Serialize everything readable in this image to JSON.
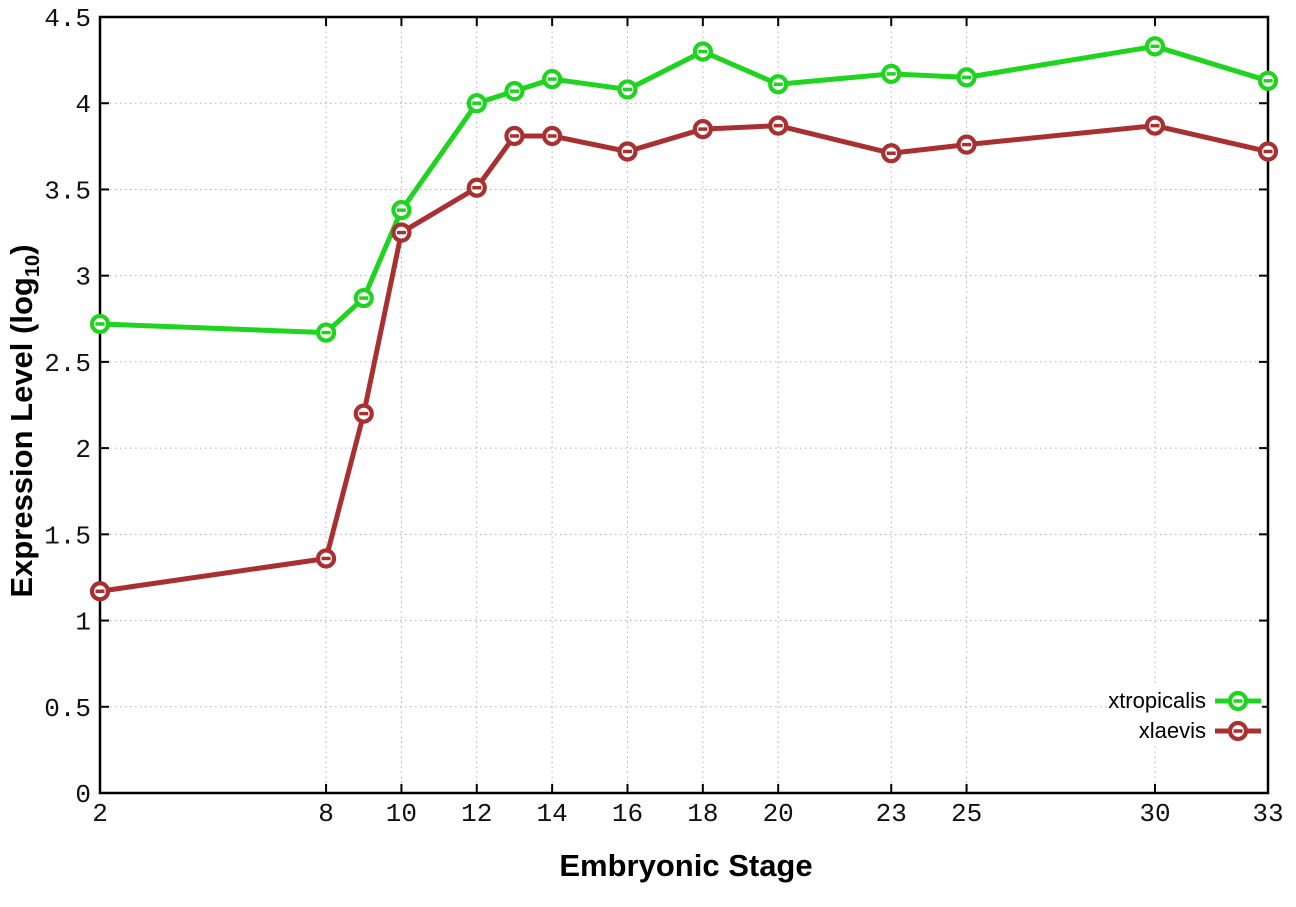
{
  "chart_data": {
    "type": "line",
    "xlabel": "Embryonic Stage",
    "ylabel_prefix": "Expression Level (log",
    "ylabel_sub": "10",
    "ylabel_suffix": ")",
    "x": [
      2,
      8,
      9,
      10,
      12,
      13,
      14,
      16,
      18,
      20,
      23,
      25,
      30,
      33
    ],
    "series": [
      {
        "name": "xtropicalis",
        "color": "#1ed41e",
        "marker": "open-circle-with-dash",
        "values": [
          2.72,
          2.67,
          2.87,
          3.38,
          4.0,
          4.07,
          4.14,
          4.08,
          4.3,
          4.11,
          4.17,
          4.15,
          4.33,
          4.13
        ]
      },
      {
        "name": "xlaevis",
        "color": "#a93030",
        "marker": "open-circle-with-dash",
        "values": [
          1.17,
          1.36,
          2.2,
          3.25,
          3.51,
          3.81,
          3.81,
          3.72,
          3.85,
          3.87,
          3.71,
          3.76,
          3.87,
          3.72
        ]
      }
    ],
    "xlim": [
      2,
      33
    ],
    "ylim": [
      0,
      4.5
    ],
    "xticks": [
      2,
      8,
      10,
      12,
      14,
      16,
      18,
      20,
      23,
      25,
      30,
      33
    ],
    "xtick_labels": [
      "2",
      "8",
      "10",
      "12",
      "14",
      "16",
      "18",
      "20",
      "23",
      "25",
      "30",
      "33"
    ],
    "yticks": [
      0,
      0.5,
      1,
      1.5,
      2,
      2.5,
      3,
      3.5,
      4,
      4.5
    ],
    "ytick_labels": [
      "0",
      "0.5",
      "1",
      "1.5",
      "2",
      "2.5",
      "3",
      "3.5",
      "4",
      "4.5"
    ],
    "grid": true,
    "legend_position": "bottom-right",
    "colors": {
      "grid": "#b0b0b0",
      "axis": "#000000",
      "tick_text": "#111111",
      "background": "#ffffff"
    }
  }
}
